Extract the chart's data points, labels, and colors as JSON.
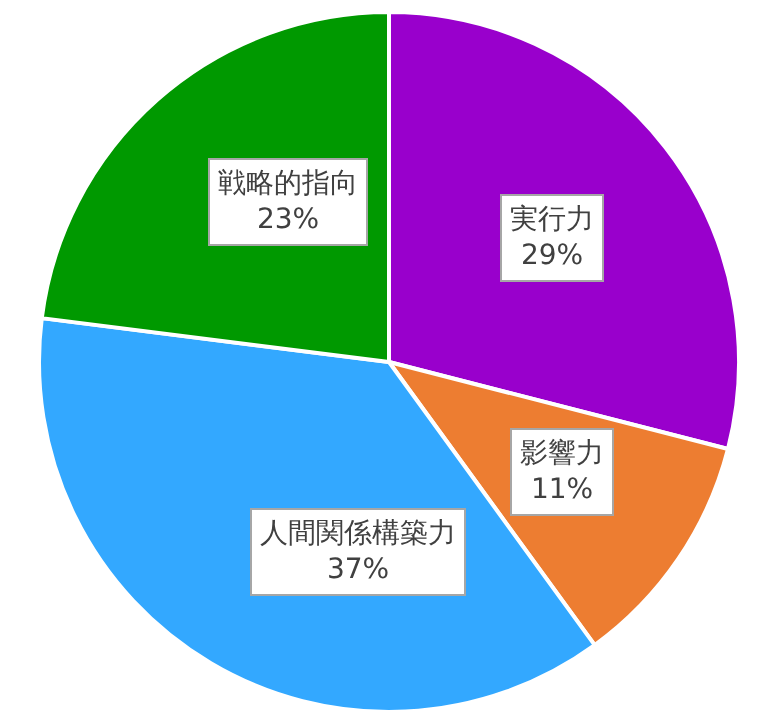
{
  "chart_data": {
    "type": "pie",
    "categories": [
      "実行力",
      "影響力",
      "人間関係構築力",
      "戦略的指向"
    ],
    "values": [
      29,
      11,
      37,
      23
    ],
    "value_labels": [
      "29%",
      "11%",
      "37%",
      "23%"
    ],
    "colors": [
      "#9900cc",
      "#ed7d31",
      "#33a8ff",
      "#009900"
    ],
    "legend": false
  }
}
